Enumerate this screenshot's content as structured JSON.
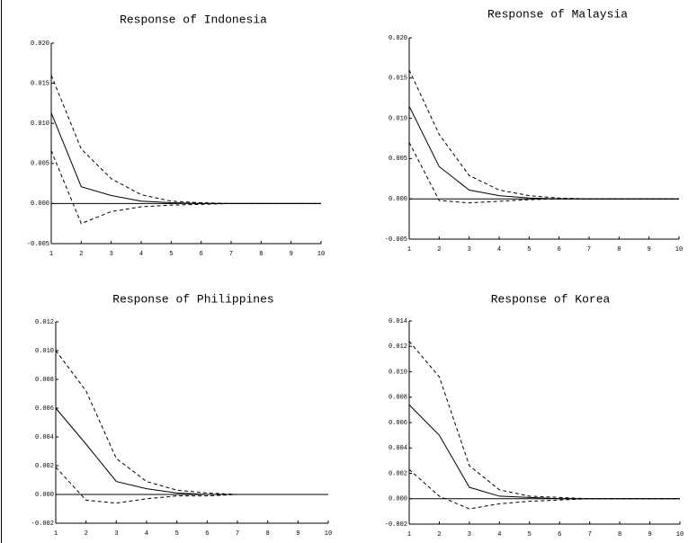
{
  "chart_data": [
    {
      "type": "line",
      "title": "Response of Indonesia",
      "x": [
        1,
        2,
        3,
        4,
        5,
        6,
        7,
        8,
        9,
        10
      ],
      "xlim": [
        1,
        10
      ],
      "xticks": [
        1,
        2,
        3,
        4,
        5,
        6,
        7,
        8,
        9,
        10
      ],
      "ylim": [
        -0.005,
        0.02
      ],
      "yticks": [
        {
          "value": -0.005,
          "label": "-0.005"
        },
        {
          "value": 0,
          "label": "0.000"
        },
        {
          "value": 0.005,
          "label": "0.005"
        },
        {
          "value": 0.01,
          "label": "0.010"
        },
        {
          "value": 0.015,
          "label": "0.015"
        },
        {
          "value": 0.02,
          "label": "0.020"
        }
      ],
      "zero_line": true,
      "series": [
        {
          "color": "#000000",
          "dashed": false,
          "values": [
            0.0113,
            0.0021,
            0.001,
            0.0003,
            0.0001,
            0,
            0,
            0,
            0,
            0
          ]
        },
        {
          "color": "#000000",
          "dashed": true,
          "values": [
            0.016,
            0.0068,
            0.0031,
            0.0011,
            0.0003,
            0.0001,
            0,
            0,
            0,
            0
          ]
        },
        {
          "color": "#000000",
          "dashed": true,
          "values": [
            0.0066,
            -0.0025,
            -0.001,
            -0.0004,
            -0.0002,
            -0.0001,
            0,
            0,
            0,
            0
          ]
        }
      ]
    },
    {
      "type": "line",
      "title": "Response of Malaysia",
      "x": [
        1,
        2,
        3,
        4,
        5,
        6,
        7,
        8,
        9,
        10
      ],
      "xlim": [
        1,
        10
      ],
      "xticks": [
        1,
        2,
        3,
        4,
        5,
        6,
        7,
        8,
        9,
        10
      ],
      "ylim": [
        -0.005,
        0.02
      ],
      "yticks": [
        {
          "value": -0.005,
          "label": "-0.005"
        },
        {
          "value": 0,
          "label": "0.000"
        },
        {
          "value": 0.005,
          "label": "0.005"
        },
        {
          "value": 0.01,
          "label": "0.010"
        },
        {
          "value": 0.015,
          "label": "0.015"
        },
        {
          "value": 0.02,
          "label": "0.020"
        }
      ],
      "zero_line": true,
      "series": [
        {
          "color": "#000000",
          "dashed": false,
          "values": [
            0.0115,
            0.004,
            0.0011,
            0.0004,
            0.0001,
            0,
            0,
            0,
            0,
            0
          ]
        },
        {
          "color": "#000000",
          "dashed": true,
          "values": [
            0.016,
            0.008,
            0.0029,
            0.0011,
            0.0004,
            0.0001,
            0,
            0,
            0,
            0
          ]
        },
        {
          "color": "#000000",
          "dashed": true,
          "values": [
            0.007,
            -0.0002,
            -0.0005,
            -0.0003,
            -0.0001,
            0,
            0,
            0,
            0,
            0
          ]
        }
      ]
    },
    {
      "type": "line",
      "title": "Response of Philippines",
      "x": [
        1,
        2,
        3,
        4,
        5,
        6,
        7,
        8,
        9,
        10
      ],
      "xlim": [
        1,
        10
      ],
      "xticks": [
        1,
        2,
        3,
        4,
        5,
        6,
        7,
        8,
        9,
        10
      ],
      "ylim": [
        -0.002,
        0.012
      ],
      "yticks": [
        {
          "value": -0.002,
          "label": "-0.002"
        },
        {
          "value": 0,
          "label": "0.000"
        },
        {
          "value": 0.002,
          "label": "0.002"
        },
        {
          "value": 0.004,
          "label": "0.004"
        },
        {
          "value": 0.006,
          "label": "0.006"
        },
        {
          "value": 0.008,
          "label": "0.008"
        },
        {
          "value": 0.01,
          "label": "0.010"
        },
        {
          "value": 0.012,
          "label": "0.012"
        }
      ],
      "zero_line": true,
      "series": [
        {
          "color": "#000000",
          "dashed": false,
          "values": [
            0.006,
            0.0035,
            0.0009,
            0.0004,
            0.0001,
            0,
            0,
            null,
            null,
            null
          ]
        },
        {
          "color": "#000000",
          "dashed": true,
          "values": [
            0.01,
            0.0072,
            0.0025,
            0.0009,
            0.0003,
            0.0001,
            0,
            null,
            null,
            null
          ]
        },
        {
          "color": "#000000",
          "dashed": true,
          "values": [
            0.0019,
            -0.0004,
            -0.0006,
            -0.0003,
            -0.0001,
            -0.0001,
            0,
            null,
            null,
            null
          ]
        }
      ]
    },
    {
      "type": "line",
      "title": "Response of Korea",
      "x": [
        1,
        2,
        3,
        4,
        5,
        6,
        7,
        8,
        9,
        10
      ],
      "xlim": [
        1,
        10
      ],
      "xticks": [
        1,
        2,
        3,
        4,
        5,
        6,
        7,
        8,
        9,
        10
      ],
      "ylim": [
        -0.002,
        0.014
      ],
      "yticks": [
        {
          "value": -0.002,
          "label": "-0.002"
        },
        {
          "value": 0,
          "label": "0.000"
        },
        {
          "value": 0.002,
          "label": "0.002"
        },
        {
          "value": 0.004,
          "label": "0.004"
        },
        {
          "value": 0.006,
          "label": "0.006"
        },
        {
          "value": 0.008,
          "label": "0.008"
        },
        {
          "value": 0.01,
          "label": "0.010"
        },
        {
          "value": 0.012,
          "label": "0.012"
        },
        {
          "value": 0.014,
          "label": "0.014"
        }
      ],
      "zero_line": true,
      "series": [
        {
          "color": "#000000",
          "dashed": false,
          "values": [
            0.0074,
            0.005,
            0.0009,
            0.0002,
            0.0001,
            0,
            0,
            0,
            0,
            0
          ]
        },
        {
          "color": "#000000",
          "dashed": true,
          "values": [
            0.0124,
            0.0096,
            0.0026,
            0.0007,
            0.0002,
            0.0001,
            0,
            0,
            0,
            0
          ]
        },
        {
          "color": "#000000",
          "dashed": true,
          "values": [
            0.0023,
            0.0002,
            -0.0008,
            -0.0004,
            -0.0002,
            -0.0001,
            0,
            0,
            0,
            0
          ]
        }
      ]
    }
  ]
}
